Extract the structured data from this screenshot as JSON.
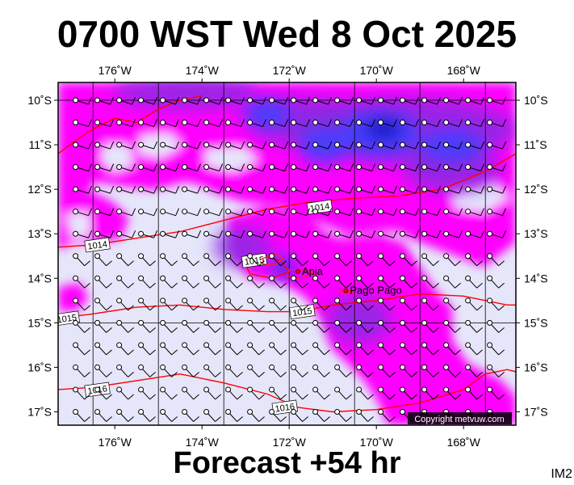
{
  "title": "0700 WST Wed 8 Oct 2025",
  "subtitle": "Forecast +54 hr",
  "code_label": "IM2",
  "copyright": "Copyright metvuw.com",
  "map": {
    "lon_range": [
      -177.3,
      -166.8
    ],
    "lat_range": [
      -17.3,
      -9.6
    ],
    "lon_ticks": [
      {
        "value": -176,
        "label": "176˚W"
      },
      {
        "value": -174,
        "label": "174˚W"
      },
      {
        "value": -172,
        "label": "172˚W"
      },
      {
        "value": -170,
        "label": "170˚W"
      },
      {
        "value": -168,
        "label": "168˚W"
      }
    ],
    "lat_ticks": [
      {
        "value": -10,
        "label": "10˚S"
      },
      {
        "value": -11,
        "label": "11˚S"
      },
      {
        "value": -12,
        "label": "12˚S"
      },
      {
        "value": -13,
        "label": "13˚S"
      },
      {
        "value": -14,
        "label": "14˚S"
      },
      {
        "value": -15,
        "label": "15˚S"
      },
      {
        "value": -16,
        "label": "16˚S"
      },
      {
        "value": -17,
        "label": "17˚S"
      }
    ],
    "colors": {
      "background_lavender": "#e6e6fa",
      "magenta": "#ff00ff",
      "purple": "#a020f0",
      "violet": "#8a2be2",
      "blue": "#4040ff",
      "dark_blue": "#1010c0",
      "isobar": "#ff0000",
      "land": "#ff2020",
      "grid": "#000000"
    },
    "isobars": [
      {
        "value": "1014",
        "points": [
          [
            -177.3,
            -13.3
          ],
          [
            -176.5,
            -13.25
          ],
          [
            -175.5,
            -13.1
          ],
          [
            -174.5,
            -12.95
          ],
          [
            -173.5,
            -12.7
          ],
          [
            -172.5,
            -12.45
          ],
          [
            -171.6,
            -12.3
          ],
          [
            -170.5,
            -12.2
          ],
          [
            -169.5,
            -12.15
          ],
          [
            -168.5,
            -12.0
          ],
          [
            -167.5,
            -11.6
          ],
          [
            -166.8,
            -11.2
          ]
        ],
        "labels": [
          [
            -176.4,
            -13.25
          ],
          [
            -171.3,
            -12.4
          ]
        ]
      },
      {
        "value": "1014",
        "points": [
          [
            -177.3,
            -11.2
          ],
          [
            -176.6,
            -10.7
          ],
          [
            -176.0,
            -10.4
          ],
          [
            -175.5,
            -10.5
          ],
          [
            -175.0,
            -10.2
          ],
          [
            -174.5,
            -10.0
          ],
          [
            -174.0,
            -9.9
          ]
        ],
        "labels": []
      },
      {
        "value": "1015",
        "points": [
          [
            -177.3,
            -14.9
          ],
          [
            -176.5,
            -14.8
          ],
          [
            -175.5,
            -14.65
          ],
          [
            -174.5,
            -14.6
          ],
          [
            -173.5,
            -14.7
          ],
          [
            -172.5,
            -14.75
          ],
          [
            -171.8,
            -14.75
          ],
          [
            -171.0,
            -14.6
          ],
          [
            -170.0,
            -14.5
          ],
          [
            -169.0,
            -14.35
          ],
          [
            -168.0,
            -14.4
          ],
          [
            -167.0,
            -14.6
          ],
          [
            -166.8,
            -14.6
          ]
        ],
        "labels": [
          [
            -177.1,
            -14.9
          ],
          [
            -171.7,
            -14.75
          ]
        ]
      },
      {
        "value": "1015",
        "points": [
          [
            -173.0,
            -13.7
          ],
          [
            -172.6,
            -13.5
          ],
          [
            -172.2,
            -13.6
          ],
          [
            -172.0,
            -13.85
          ],
          [
            -172.4,
            -14.0
          ],
          [
            -172.9,
            -13.9
          ],
          [
            -173.0,
            -13.7
          ]
        ],
        "labels": [
          [
            -172.8,
            -13.6
          ]
        ]
      },
      {
        "value": "1016",
        "points": [
          [
            -177.3,
            -16.5
          ],
          [
            -176.5,
            -16.45
          ],
          [
            -175.5,
            -16.3
          ],
          [
            -174.5,
            -16.15
          ],
          [
            -173.5,
            -16.35
          ],
          [
            -172.5,
            -16.6
          ],
          [
            -171.8,
            -16.9
          ],
          [
            -171.0,
            -17.0
          ],
          [
            -170.0,
            -16.95
          ],
          [
            -169.0,
            -16.8
          ],
          [
            -168.0,
            -16.5
          ],
          [
            -167.5,
            -16.15
          ],
          [
            -167.0,
            -16.05
          ],
          [
            -166.8,
            -16.1
          ]
        ],
        "labels": [
          [
            -176.4,
            -16.5
          ],
          [
            -172.1,
            -16.9
          ]
        ]
      }
    ],
    "places": [
      {
        "name": "Apia",
        "lon": -171.8,
        "lat": -13.85
      },
      {
        "name": "Pago Pago",
        "lon": -170.7,
        "lat": -14.28
      }
    ]
  }
}
